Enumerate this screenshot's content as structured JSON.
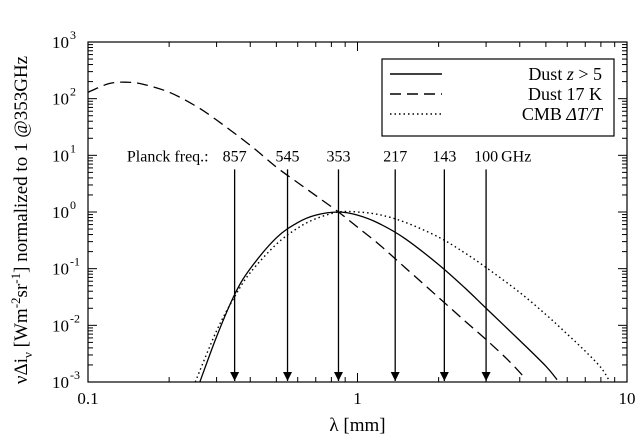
{
  "chart_data": {
    "type": "line",
    "xlabel": "λ [mm]",
    "ylabel": "νΔi_ν [Wm^-2 sr^-1] normalized to 1 @353GHz",
    "ylabel_parts": {
      "nu": "ν",
      "delta_i": "Δi",
      "sub_nu": "ν",
      "unit_open": " [Wm",
      "exp_m2": "-2",
      "sr": "sr",
      "exp_m1": "-1",
      "tail": "] normalized to 1 @353GHz"
    },
    "x_scale": "log",
    "y_scale": "log",
    "xlim": [
      0.1,
      10
    ],
    "ylim": [
      0.001,
      1000
    ],
    "x_ticks": [
      {
        "value": 0.1,
        "label": "0.1"
      },
      {
        "value": 1,
        "label": "1"
      },
      {
        "value": 10,
        "label": "10"
      }
    ],
    "y_ticks": [
      {
        "value": 0.001,
        "base": "10",
        "exp": "-3"
      },
      {
        "value": 0.01,
        "base": "10",
        "exp": "-2"
      },
      {
        "value": 0.1,
        "base": "10",
        "exp": "-1"
      },
      {
        "value": 1,
        "base": "10",
        "exp": "0"
      },
      {
        "value": 10,
        "base": "10",
        "exp": "1"
      },
      {
        "value": 100,
        "base": "10",
        "exp": "2"
      },
      {
        "value": 1000,
        "base": "10",
        "exp": "3"
      }
    ],
    "legend": {
      "position": "top-right",
      "entries": [
        {
          "label_main": "Dust ",
          "label_ital": "z",
          "label_tail": " > 5",
          "dash": "solid"
        },
        {
          "label_main": "Dust 17 K",
          "label_ital": "",
          "label_tail": "",
          "dash": "dashed"
        },
        {
          "label_main": "CMB ",
          "label_ital": "ΔT/T",
          "label_tail": "",
          "dash": "dotted"
        }
      ]
    },
    "series": [
      {
        "dash": "solid",
        "x": [
          0.26,
          0.3,
          0.35,
          0.4,
          0.5,
          0.6,
          0.7,
          0.85,
          1.0,
          1.2,
          1.5,
          2.0,
          2.5,
          3.0,
          4.0,
          5.0,
          5.5
        ],
        "y": [
          0.001,
          0.0063,
          0.035,
          0.1,
          0.35,
          0.65,
          0.88,
          1.0,
          0.88,
          0.63,
          0.34,
          0.118,
          0.046,
          0.02,
          0.0054,
          0.0019,
          0.0011
        ]
      },
      {
        "dash": "dashed",
        "x": [
          0.1,
          0.12,
          0.14,
          0.16,
          0.2,
          0.25,
          0.3,
          0.4,
          0.5,
          0.6,
          0.7,
          0.85,
          1.0,
          1.2,
          1.5,
          2.0,
          2.5,
          3.0,
          3.6,
          4.2
        ],
        "y": [
          130,
          185,
          195,
          180,
          130,
          75,
          42,
          15,
          6.2,
          3.3,
          1.95,
          1.0,
          0.54,
          0.27,
          0.105,
          0.031,
          0.012,
          0.0056,
          0.0025,
          0.00115
        ]
      },
      {
        "dash": "dotted",
        "x": [
          0.25,
          0.3,
          0.35,
          0.4,
          0.5,
          0.6,
          0.7,
          0.85,
          1.0,
          1.2,
          1.5,
          2.0,
          2.5,
          3.0,
          4.0,
          5.0,
          6.0,
          7.0,
          8.0,
          8.6
        ],
        "y": [
          0.001,
          0.008,
          0.032,
          0.085,
          0.27,
          0.52,
          0.76,
          1.0,
          1.0,
          0.9,
          0.66,
          0.36,
          0.19,
          0.105,
          0.038,
          0.0155,
          0.007,
          0.0035,
          0.0018,
          0.00105
        ]
      }
    ],
    "planck": {
      "label": "Planck freq.:",
      "unit": "GHz",
      "frequencies": [
        {
          "freq": "857",
          "wavelength_mm": 0.35
        },
        {
          "freq": "545",
          "wavelength_mm": 0.55
        },
        {
          "freq": "353",
          "wavelength_mm": 0.85
        },
        {
          "freq": "217",
          "wavelength_mm": 1.38
        },
        {
          "freq": "143",
          "wavelength_mm": 2.1
        },
        {
          "freq": "100",
          "wavelength_mm": 3.0
        }
      ],
      "arrow_start_y": 10,
      "arrow_end_y": 0.001
    },
    "grid": false
  }
}
